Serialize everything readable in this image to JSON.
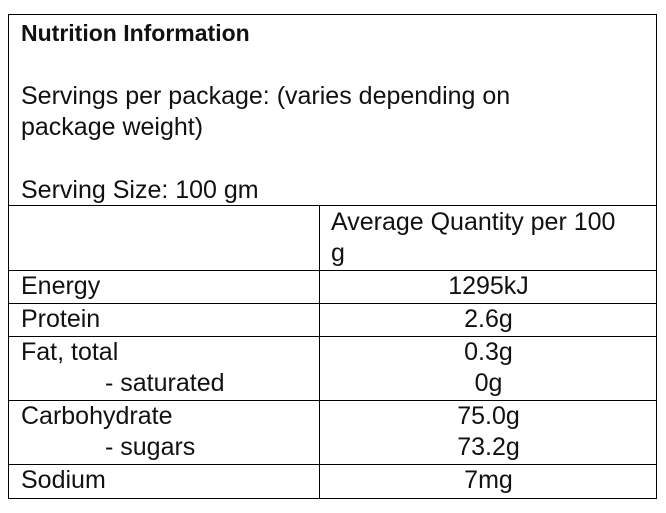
{
  "header": {
    "title": "Nutrition Information",
    "servings": "Servings per package: (varies depending on package weight)",
    "serving_size": "Serving Size: 100 gm"
  },
  "table": {
    "column_header": "Average Quantity per 100 g",
    "rows": [
      {
        "labels": [
          "Energy"
        ],
        "values": [
          "1295kJ"
        ]
      },
      {
        "labels": [
          "Protein"
        ],
        "values": [
          "2.6g"
        ]
      },
      {
        "labels": [
          "Fat, total",
          "- saturated"
        ],
        "values": [
          "0.3g",
          "0g"
        ]
      },
      {
        "labels": [
          "Carbohydrate",
          "- sugars"
        ],
        "values": [
          "75.0g",
          "73.2g"
        ]
      },
      {
        "labels": [
          "Sodium"
        ],
        "values": [
          "7mg"
        ]
      }
    ]
  }
}
